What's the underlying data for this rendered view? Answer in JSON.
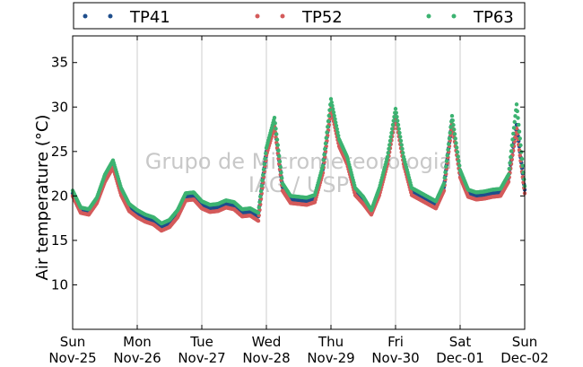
{
  "chart_data": {
    "type": "scatter",
    "title": "",
    "xlabel": "",
    "ylabel": "Air temperature (°C)",
    "watermark": [
      "Grupo de Micrometeorologia",
      "IAG / USP"
    ],
    "xlim": [
      "2012-11-25T00:00",
      "2012-12-02T00:00"
    ],
    "ylim": [
      5,
      38
    ],
    "yticks": [
      10,
      15,
      20,
      25,
      30,
      35
    ],
    "xticks": [
      {
        "day": "Sun",
        "date": "Nov-25"
      },
      {
        "day": "Mon",
        "date": "Nov-26"
      },
      {
        "day": "Tue",
        "date": "Nov-27"
      },
      {
        "day": "Wed",
        "date": "Nov-28"
      },
      {
        "day": "Thu",
        "date": "Nov-29"
      },
      {
        "day": "Fri",
        "date": "Nov-30"
      },
      {
        "day": "Sat",
        "date": "Dec-01"
      },
      {
        "day": "Sun",
        "date": "Dec-02"
      }
    ],
    "grid": "vertical",
    "legend_position": "top",
    "series": [
      {
        "name": "TP41",
        "color": "#1f4e8c",
        "points": [
          [
            "2012-11-25T00:00",
            20.3
          ],
          [
            "2012-11-25T03:00",
            18.4
          ],
          [
            "2012-11-25T06:00",
            18.2
          ],
          [
            "2012-11-25T09:00",
            19.5
          ],
          [
            "2012-11-25T12:00",
            22.0
          ],
          [
            "2012-11-25T15:00",
            23.6
          ],
          [
            "2012-11-25T18:00",
            20.5
          ],
          [
            "2012-11-25T21:00",
            18.7
          ],
          [
            "2012-11-26T00:00",
            18.0
          ],
          [
            "2012-11-26T03:00",
            17.5
          ],
          [
            "2012-11-26T06:00",
            17.2
          ],
          [
            "2012-11-26T09:00",
            16.5
          ],
          [
            "2012-11-26T12:00",
            16.9
          ],
          [
            "2012-11-26T15:00",
            18.0
          ],
          [
            "2012-11-26T18:00",
            19.9
          ],
          [
            "2012-11-26T21:00",
            20.0
          ],
          [
            "2012-11-27T00:00",
            19.0
          ],
          [
            "2012-11-27T03:00",
            18.6
          ],
          [
            "2012-11-27T06:00",
            18.7
          ],
          [
            "2012-11-27T09:00",
            19.1
          ],
          [
            "2012-11-27T12:00",
            18.9
          ],
          [
            "2012-11-27T15:00",
            18.1
          ],
          [
            "2012-11-27T18:00",
            18.2
          ],
          [
            "2012-11-27T21:00",
            17.7
          ],
          [
            "2012-11-28T00:00",
            25.0
          ],
          [
            "2012-11-28T03:00",
            28.2
          ],
          [
            "2012-11-28T06:00",
            21.0
          ],
          [
            "2012-11-28T09:00",
            19.6
          ],
          [
            "2012-11-28T12:00",
            19.5
          ],
          [
            "2012-11-28T15:00",
            19.4
          ],
          [
            "2012-11-28T18:00",
            19.7
          ],
          [
            "2012-11-28T21:00",
            23.0
          ],
          [
            "2012-11-29T00:00",
            30.2
          ],
          [
            "2012-11-29T03:00",
            26.0
          ],
          [
            "2012-11-29T06:00",
            24.0
          ],
          [
            "2012-11-29T09:00",
            20.5
          ],
          [
            "2012-11-29T12:00",
            19.5
          ],
          [
            "2012-11-29T15:00",
            18.0
          ],
          [
            "2012-11-29T18:00",
            20.5
          ],
          [
            "2012-11-29T21:00",
            24.0
          ],
          [
            "2012-11-30T00:00",
            29.3
          ],
          [
            "2012-11-30T03:00",
            24.0
          ],
          [
            "2012-11-30T06:00",
            20.5
          ],
          [
            "2012-11-30T09:00",
            20.0
          ],
          [
            "2012-11-30T12:00",
            19.5
          ],
          [
            "2012-11-30T15:00",
            19.0
          ],
          [
            "2012-11-30T18:00",
            21.0
          ],
          [
            "2012-11-30T21:00",
            28.5
          ],
          [
            "2012-12-01T00:00",
            22.5
          ],
          [
            "2012-12-01T03:00",
            20.3
          ],
          [
            "2012-12-01T06:00",
            20.0
          ],
          [
            "2012-12-01T09:00",
            20.1
          ],
          [
            "2012-12-01T12:00",
            20.3
          ],
          [
            "2012-12-01T15:00",
            20.4
          ],
          [
            "2012-12-01T18:00",
            22.0
          ],
          [
            "2012-12-01T21:00",
            28.0
          ],
          [
            "2012-12-02T00:00",
            20.7
          ]
        ]
      },
      {
        "name": "TP52",
        "color": "#d45a5a",
        "points": [
          [
            "2012-11-25T00:00",
            20.0
          ],
          [
            "2012-11-25T03:00",
            18.1
          ],
          [
            "2012-11-25T06:00",
            17.9
          ],
          [
            "2012-11-25T09:00",
            19.2
          ],
          [
            "2012-11-25T12:00",
            21.6
          ],
          [
            "2012-11-25T15:00",
            23.2
          ],
          [
            "2012-11-25T18:00",
            20.1
          ],
          [
            "2012-11-25T21:00",
            18.3
          ],
          [
            "2012-11-26T00:00",
            17.6
          ],
          [
            "2012-11-26T03:00",
            17.1
          ],
          [
            "2012-11-26T06:00",
            16.8
          ],
          [
            "2012-11-26T09:00",
            16.1
          ],
          [
            "2012-11-26T12:00",
            16.5
          ],
          [
            "2012-11-26T15:00",
            17.6
          ],
          [
            "2012-11-26T18:00",
            19.5
          ],
          [
            "2012-11-26T21:00",
            19.6
          ],
          [
            "2012-11-27T00:00",
            18.6
          ],
          [
            "2012-11-27T03:00",
            18.2
          ],
          [
            "2012-11-27T06:00",
            18.3
          ],
          [
            "2012-11-27T09:00",
            18.7
          ],
          [
            "2012-11-27T12:00",
            18.5
          ],
          [
            "2012-11-27T15:00",
            17.7
          ],
          [
            "2012-11-27T18:00",
            17.8
          ],
          [
            "2012-11-27T21:00",
            17.2
          ],
          [
            "2012-11-28T00:00",
            24.6
          ],
          [
            "2012-11-28T03:00",
            27.8
          ],
          [
            "2012-11-28T06:00",
            20.6
          ],
          [
            "2012-11-28T09:00",
            19.2
          ],
          [
            "2012-11-28T12:00",
            19.1
          ],
          [
            "2012-11-28T15:00",
            19.0
          ],
          [
            "2012-11-28T18:00",
            19.3
          ],
          [
            "2012-11-28T21:00",
            22.6
          ],
          [
            "2012-11-29T00:00",
            29.8
          ],
          [
            "2012-11-29T03:00",
            25.6
          ],
          [
            "2012-11-29T06:00",
            23.6
          ],
          [
            "2012-11-29T09:00",
            20.1
          ],
          [
            "2012-11-29T12:00",
            19.1
          ],
          [
            "2012-11-29T15:00",
            17.9
          ],
          [
            "2012-11-29T18:00",
            20.1
          ],
          [
            "2012-11-29T21:00",
            23.6
          ],
          [
            "2012-11-30T00:00",
            28.9
          ],
          [
            "2012-11-30T03:00",
            23.6
          ],
          [
            "2012-11-30T06:00",
            20.1
          ],
          [
            "2012-11-30T09:00",
            19.6
          ],
          [
            "2012-11-30T12:00",
            19.1
          ],
          [
            "2012-11-30T15:00",
            18.6
          ],
          [
            "2012-11-30T18:00",
            20.6
          ],
          [
            "2012-11-30T21:00",
            28.1
          ],
          [
            "2012-12-01T00:00",
            22.1
          ],
          [
            "2012-12-01T03:00",
            19.9
          ],
          [
            "2012-12-01T06:00",
            19.6
          ],
          [
            "2012-12-01T09:00",
            19.7
          ],
          [
            "2012-12-01T12:00",
            19.9
          ],
          [
            "2012-12-01T15:00",
            20.0
          ],
          [
            "2012-12-01T18:00",
            21.6
          ],
          [
            "2012-12-01T21:00",
            27.6
          ],
          [
            "2012-12-02T00:00",
            20.3
          ]
        ]
      },
      {
        "name": "TP63",
        "color": "#3cb371",
        "points": [
          [
            "2012-11-25T00:00",
            20.6
          ],
          [
            "2012-11-25T03:00",
            18.7
          ],
          [
            "2012-11-25T06:00",
            18.5
          ],
          [
            "2012-11-25T09:00",
            19.8
          ],
          [
            "2012-11-25T12:00",
            22.4
          ],
          [
            "2012-11-25T15:00",
            24.0
          ],
          [
            "2012-11-25T18:00",
            20.9
          ],
          [
            "2012-11-25T21:00",
            19.1
          ],
          [
            "2012-11-26T00:00",
            18.4
          ],
          [
            "2012-11-26T03:00",
            17.9
          ],
          [
            "2012-11-26T06:00",
            17.6
          ],
          [
            "2012-11-26T09:00",
            16.9
          ],
          [
            "2012-11-26T12:00",
            17.3
          ],
          [
            "2012-11-26T15:00",
            18.4
          ],
          [
            "2012-11-26T18:00",
            20.3
          ],
          [
            "2012-11-26T21:00",
            20.4
          ],
          [
            "2012-11-27T00:00",
            19.4
          ],
          [
            "2012-11-27T03:00",
            19.0
          ],
          [
            "2012-11-27T06:00",
            19.1
          ],
          [
            "2012-11-27T09:00",
            19.5
          ],
          [
            "2012-11-27T12:00",
            19.3
          ],
          [
            "2012-11-27T15:00",
            18.5
          ],
          [
            "2012-11-27T18:00",
            18.6
          ],
          [
            "2012-11-27T21:00",
            18.1
          ],
          [
            "2012-11-28T00:00",
            25.4
          ],
          [
            "2012-11-28T03:00",
            28.8
          ],
          [
            "2012-11-28T06:00",
            21.4
          ],
          [
            "2012-11-28T09:00",
            20.0
          ],
          [
            "2012-11-28T12:00",
            19.9
          ],
          [
            "2012-11-28T15:00",
            19.8
          ],
          [
            "2012-11-28T18:00",
            20.1
          ],
          [
            "2012-11-28T21:00",
            23.4
          ],
          [
            "2012-11-29T00:00",
            30.9
          ],
          [
            "2012-11-29T03:00",
            26.4
          ],
          [
            "2012-11-29T06:00",
            24.4
          ],
          [
            "2012-11-29T09:00",
            20.9
          ],
          [
            "2012-11-29T12:00",
            19.9
          ],
          [
            "2012-11-29T15:00",
            18.4
          ],
          [
            "2012-11-29T18:00",
            20.9
          ],
          [
            "2012-11-29T21:00",
            24.4
          ],
          [
            "2012-11-30T00:00",
            29.8
          ],
          [
            "2012-11-30T03:00",
            24.4
          ],
          [
            "2012-11-30T06:00",
            20.9
          ],
          [
            "2012-11-30T09:00",
            20.4
          ],
          [
            "2012-11-30T12:00",
            19.9
          ],
          [
            "2012-11-30T15:00",
            19.4
          ],
          [
            "2012-11-30T18:00",
            21.4
          ],
          [
            "2012-11-30T21:00",
            29.0
          ],
          [
            "2012-12-01T00:00",
            22.9
          ],
          [
            "2012-12-01T03:00",
            20.7
          ],
          [
            "2012-12-01T06:00",
            20.4
          ],
          [
            "2012-12-01T09:00",
            20.5
          ],
          [
            "2012-12-01T12:00",
            20.7
          ],
          [
            "2012-12-01T15:00",
            20.8
          ],
          [
            "2012-12-01T18:00",
            22.4
          ],
          [
            "2012-12-01T21:00",
            30.3
          ],
          [
            "2012-12-02T00:00",
            21.1
          ]
        ]
      }
    ]
  }
}
